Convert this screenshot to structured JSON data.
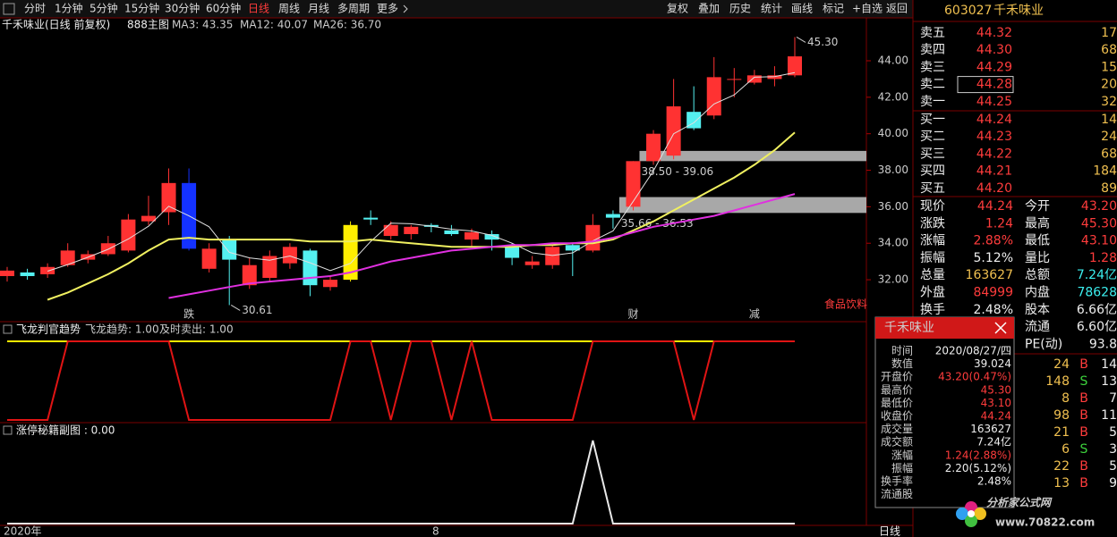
{
  "toolbar": {
    "periods": [
      "分时",
      "1分钟",
      "5分钟",
      "15分钟",
      "30分钟",
      "60分钟",
      "日线",
      "周线",
      "月线",
      "多周期",
      "更多"
    ],
    "actions": [
      "复权",
      "叠加",
      "历史",
      "统计",
      "画线",
      "标记",
      "+自选",
      "返回"
    ]
  },
  "chart_data": [
    {
      "type": "candlestick",
      "title": "千禾味业(日线 前复权)",
      "subtitle": "888主图",
      "open": [
        32.2,
        32.4,
        32.3,
        32.8,
        33.1,
        33.4,
        33.6,
        35.2,
        35.7,
        37.3,
        32.6,
        34.2,
        31.7,
        32.1,
        32.9,
        33.6,
        31.6,
        32.0,
        35.4,
        34.4,
        34.5,
        35.0,
        34.7,
        34.2,
        34.5,
        33.8,
        32.8,
        32.8,
        33.9,
        33.6,
        35.6,
        36.0,
        38.5,
        38.8,
        41.2,
        41.0,
        43.0,
        42.8,
        43.0,
        43.2
      ],
      "high": [
        32.7,
        32.6,
        32.9,
        34.0,
        33.6,
        34.4,
        35.6,
        36.6,
        38.1,
        38.1,
        34.0,
        34.4,
        33.2,
        33.6,
        34.0,
        33.7,
        32.2,
        35.2,
        35.8,
        35.2,
        35.0,
        35.1,
        35.0,
        34.8,
        34.7,
        34.0,
        33.3,
        33.9,
        34.0,
        35.6,
        35.8,
        38.5,
        40.2,
        43.0,
        42.6,
        44.2,
        43.6,
        43.5,
        43.7,
        45.3
      ],
      "low": [
        31.9,
        32.0,
        32.1,
        32.7,
        32.9,
        33.3,
        33.5,
        35.0,
        35.0,
        33.6,
        32.4,
        30.61,
        31.5,
        31.9,
        32.6,
        31.1,
        31.4,
        31.9,
        35.0,
        34.2,
        34.2,
        34.6,
        34.4,
        33.8,
        33.6,
        32.8,
        32.6,
        32.6,
        32.2,
        33.5,
        34.8,
        35.8,
        38.3,
        38.6,
        40.2,
        40.8,
        42.0,
        42.7,
        42.6,
        43.1
      ],
      "close": [
        32.5,
        32.2,
        32.7,
        33.6,
        33.4,
        34.0,
        35.3,
        35.5,
        37.3,
        33.7,
        33.7,
        33.1,
        32.8,
        33.3,
        33.8,
        31.7,
        32.0,
        35.0,
        35.3,
        35.0,
        34.9,
        34.9,
        34.5,
        34.6,
        34.2,
        33.2,
        33.0,
        33.8,
        33.6,
        35.0,
        35.4,
        38.5,
        40.0,
        41.5,
        40.3,
        43.1,
        43.0,
        43.2,
        43.2,
        44.24
      ],
      "up_color": "#ff3232",
      "down_color": "#54f0f0",
      "highlights": [
        {
          "index": 9,
          "color": "#1432ff"
        },
        {
          "index": 17,
          "color": "#ffee00"
        }
      ],
      "series": [
        {
          "name": "MA3: 43.35",
          "color": "#e0e0e0",
          "values": [
            null,
            null,
            32.47,
            32.83,
            33.23,
            33.67,
            34.23,
            34.93,
            36.03,
            35.5,
            34.9,
            33.5,
            33.2,
            33.07,
            33.3,
            32.93,
            32.5,
            32.9,
            34.1,
            35.1,
            35.07,
            34.93,
            34.77,
            34.67,
            34.43,
            34.0,
            33.47,
            33.33,
            33.47,
            34.13,
            34.67,
            36.3,
            37.97,
            40.0,
            40.6,
            41.63,
            42.13,
            43.1,
            43.13,
            43.35
          ]
        },
        {
          "name": "MA12: 40.07",
          "color": "#f0f060",
          "values": [
            null,
            null,
            30.9,
            31.3,
            31.8,
            32.3,
            32.9,
            33.6,
            34.2,
            34.3,
            34.2,
            34.2,
            34.2,
            34.2,
            34.2,
            34.1,
            34.1,
            34.1,
            34.2,
            34.1,
            34.0,
            33.9,
            33.8,
            33.8,
            33.8,
            33.8,
            33.9,
            33.9,
            34.0,
            34.0,
            34.2,
            34.7,
            35.2,
            35.8,
            36.4,
            37.0,
            37.6,
            38.3,
            39.1,
            40.07
          ]
        },
        {
          "name": "MA26: 36.70",
          "color": "#e030e0",
          "values": [
            null,
            null,
            null,
            null,
            null,
            null,
            null,
            null,
            31.0,
            31.2,
            31.4,
            31.6,
            31.8,
            31.9,
            32.0,
            32.1,
            32.2,
            32.4,
            32.7,
            33.0,
            33.2,
            33.4,
            33.6,
            33.7,
            33.8,
            33.9,
            33.9,
            34.0,
            34.0,
            34.1,
            34.3,
            34.6,
            34.9,
            35.1,
            35.3,
            35.5,
            35.8,
            36.1,
            36.4,
            36.7
          ]
        }
      ],
      "ylim": [
        29.8,
        46.35
      ],
      "yticks": [
        {
          "value": 44,
          "label": "44.00"
        },
        {
          "value": 42,
          "label": "42.00"
        },
        {
          "value": 40,
          "label": "40.00"
        },
        {
          "value": 38,
          "label": "38.00"
        },
        {
          "value": 36,
          "label": "36.00"
        },
        {
          "value": 34,
          "label": "34.00"
        },
        {
          "value": 32,
          "label": "32.00"
        }
      ],
      "annotations": [
        {
          "index": 39,
          "value": 45.3,
          "label": "45.30"
        },
        {
          "index": 11,
          "value": 30.61,
          "label": "30.61"
        }
      ],
      "zones": [
        {
          "start_index": 31,
          "low": 38.5,
          "high": 39.06,
          "label": "38.50 - 39.06"
        },
        {
          "start_index": 30,
          "low": 35.66,
          "high": 36.53,
          "label": "35.66 - 36.53"
        }
      ],
      "events": [
        {
          "index": 9,
          "text": "跌",
          "color": "#3cd23c"
        },
        {
          "index": 31,
          "text": "财",
          "color": "#3cb4f0"
        },
        {
          "index": 37,
          "text": "减",
          "color": "#3cd23c"
        }
      ],
      "sector": "食品饮料"
    },
    {
      "type": "line",
      "title": "飞龙判官趋势",
      "ylim": [
        0,
        1
      ],
      "series": [
        {
          "name": "飞龙趋势: 1.00",
          "color": "#ffee00",
          "values": [
            1,
            1,
            1,
            1,
            1,
            1,
            1,
            1,
            1,
            1,
            1,
            1,
            1,
            1,
            1,
            1,
            1,
            1,
            1,
            1,
            1,
            1,
            1,
            1,
            1,
            1,
            1,
            1,
            1,
            1,
            1,
            1,
            1,
            1,
            1,
            1,
            1,
            1,
            1,
            1
          ]
        },
        {
          "name": "及时卖出: 1.00",
          "color": "#e01414",
          "values": [
            0,
            0,
            0,
            1,
            1,
            1,
            1,
            1,
            1,
            0,
            0,
            0,
            0,
            0,
            0,
            0,
            0,
            1,
            1,
            0,
            1,
            1,
            0,
            1,
            0,
            0,
            0,
            0,
            0,
            1,
            1,
            1,
            1,
            1,
            0,
            1,
            1,
            1,
            1,
            1
          ]
        }
      ]
    },
    {
      "type": "line",
      "title": "涨停秘籍副图 : 0.00",
      "ylim": [
        0,
        1
      ],
      "series": [
        {
          "color": "#e8e8e8",
          "values": [
            0,
            0,
            0,
            0,
            0,
            0,
            0,
            0,
            0,
            0,
            0,
            0,
            0,
            0,
            0,
            0,
            0,
            0,
            0,
            0,
            0,
            0,
            0,
            0,
            0,
            0,
            0,
            0,
            0,
            1,
            0,
            0,
            0,
            0,
            0,
            0,
            0,
            0,
            0,
            0
          ]
        }
      ]
    }
  ],
  "bottom_bar": {
    "year": "2020年",
    "month": "8",
    "period": "日线"
  },
  "quote_panel": {
    "code": "603027",
    "name": "千禾味业",
    "sell": [
      [
        "卖五",
        "44.32",
        "17"
      ],
      [
        "卖四",
        "44.30",
        "68"
      ],
      [
        "卖三",
        "44.29",
        "15"
      ],
      [
        "卖二",
        "44.28",
        "20"
      ],
      [
        "卖一",
        "44.25",
        "32"
      ]
    ],
    "buy": [
      [
        "买一",
        "44.24",
        "14"
      ],
      [
        "买二",
        "44.23",
        "24"
      ],
      [
        "买三",
        "44.22",
        "68"
      ],
      [
        "买四",
        "44.21",
        "184"
      ],
      [
        "买五",
        "44.20",
        "89"
      ]
    ],
    "quotes": [
      [
        "现价",
        "44.24",
        "今开",
        "43.20"
      ],
      [
        "涨跌",
        "1.24",
        "最高",
        "45.30"
      ],
      [
        "涨幅",
        "2.88%",
        "最低",
        "43.10"
      ],
      [
        "振幅",
        "5.12%",
        "量比",
        "1.28"
      ],
      [
        "总量",
        "163627",
        "总额",
        "7.24亿"
      ],
      [
        "外盘",
        "84999",
        "内盘",
        "78628"
      ],
      [
        "换手",
        "2.48%",
        "股本",
        "6.66亿"
      ],
      [
        "流通",
        "6.60亿"
      ],
      [
        "PE(动)",
        "93.8"
      ]
    ],
    "trades": [
      [
        "24",
        "B",
        "14"
      ],
      [
        "148",
        "S",
        "13"
      ],
      [
        "8",
        "B",
        "7"
      ],
      [
        "98",
        "B",
        "11"
      ],
      [
        "21",
        "B",
        "5"
      ],
      [
        "6",
        "S",
        "3"
      ],
      [
        "22",
        "B",
        "5"
      ],
      [
        "13",
        "B",
        "9"
      ]
    ]
  },
  "tooltip": {
    "title": "千禾味业",
    "rows": [
      [
        "时间",
        "2020/08/27/四"
      ],
      [
        "数值",
        "39.024"
      ],
      [
        "开盘价",
        "43.20(0.47%)"
      ],
      [
        "最高价",
        "45.30"
      ],
      [
        "最低价",
        "43.10"
      ],
      [
        "收盘价",
        "44.24"
      ],
      [
        "成交量",
        "163627"
      ],
      [
        "成交额",
        "7.24亿"
      ],
      [
        "涨幅",
        "1.24(2.88%)"
      ],
      [
        "振幅",
        "2.20(5.12%)"
      ],
      [
        "换手率",
        "2.48%"
      ],
      [
        "流通股",
        ""
      ]
    ]
  },
  "watermark": {
    "name": "分析家公式网",
    "url": "www.70822.com"
  }
}
